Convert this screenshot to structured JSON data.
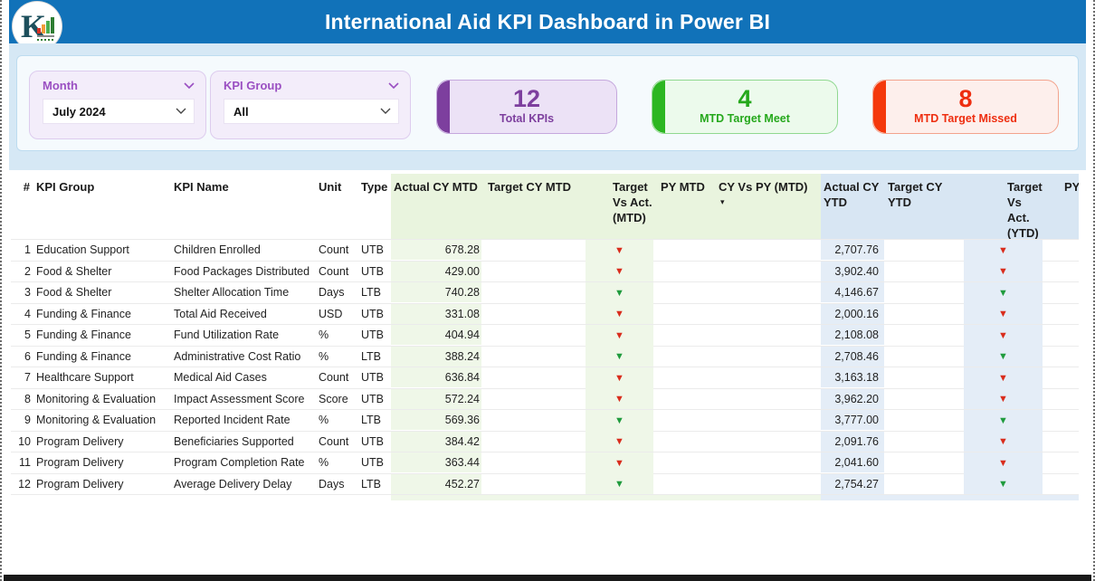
{
  "header": {
    "title": "International Aid KPI Dashboard in Power BI"
  },
  "logo": {
    "letter": "K"
  },
  "filters": {
    "month": {
      "label": "Month",
      "selected": "July 2024"
    },
    "kpi_group": {
      "label": "KPI Group",
      "selected": "All"
    }
  },
  "summary_cards": {
    "total": {
      "value": "12",
      "label": "Total KPIs",
      "color": "#7d3f9e"
    },
    "meet": {
      "value": "4",
      "label": "MTD Target Meet",
      "color": "#25a81c"
    },
    "missed": {
      "value": "8",
      "label": "MTD Target Missed",
      "color": "#ee2e10"
    }
  },
  "table": {
    "headers": {
      "num": "#",
      "group": "KPI Group",
      "name": "KPI Name",
      "unit": "Unit",
      "type": "Type",
      "actual_mtd": "Actual CY MTD",
      "target_mtd": "Target CY MTD",
      "vs_act_mtd": "Target Vs Act. (MTD)",
      "py_mtd": "PY MTD",
      "cy_vs_py_mtd": "CY Vs PY (MTD)",
      "actual_ytd": "Actual CY YTD",
      "target_ytd": "Target CY YTD",
      "vs_act_ytd": "Target Vs Act. (YTD)",
      "py_ytd": "PY"
    },
    "sorted_by": "CY Vs PY (MTD)",
    "rows": [
      {
        "num": "1",
        "group": "Education Support",
        "name": "Children Enrolled",
        "unit": "Count",
        "type": "UTB",
        "actual_mtd": "678.28",
        "mtd_status": "missed",
        "actual_ytd": "2,707.76",
        "ytd_status": "missed"
      },
      {
        "num": "2",
        "group": "Food & Shelter",
        "name": "Food Packages Distributed",
        "unit": "Count",
        "type": "UTB",
        "actual_mtd": "429.00",
        "mtd_status": "missed",
        "actual_ytd": "3,902.40",
        "ytd_status": "missed"
      },
      {
        "num": "3",
        "group": "Food & Shelter",
        "name": "Shelter Allocation Time",
        "unit": "Days",
        "type": "LTB",
        "actual_mtd": "740.28",
        "mtd_status": "met",
        "actual_ytd": "4,146.67",
        "ytd_status": "met"
      },
      {
        "num": "4",
        "group": "Funding & Finance",
        "name": "Total Aid Received",
        "unit": "USD",
        "type": "UTB",
        "actual_mtd": "331.08",
        "mtd_status": "missed",
        "actual_ytd": "2,000.16",
        "ytd_status": "missed"
      },
      {
        "num": "5",
        "group": "Funding & Finance",
        "name": "Fund Utilization Rate",
        "unit": "%",
        "type": "UTB",
        "actual_mtd": "404.94",
        "mtd_status": "missed",
        "actual_ytd": "2,108.08",
        "ytd_status": "missed"
      },
      {
        "num": "6",
        "group": "Funding & Finance",
        "name": "Administrative Cost Ratio",
        "unit": "%",
        "type": "LTB",
        "actual_mtd": "388.24",
        "mtd_status": "met",
        "actual_ytd": "2,708.46",
        "ytd_status": "met"
      },
      {
        "num": "7",
        "group": "Healthcare Support",
        "name": "Medical Aid Cases",
        "unit": "Count",
        "type": "UTB",
        "actual_mtd": "636.84",
        "mtd_status": "missed",
        "actual_ytd": "3,163.18",
        "ytd_status": "missed"
      },
      {
        "num": "8",
        "group": "Monitoring & Evaluation",
        "name": "Impact Assessment Score",
        "unit": "Score",
        "type": "UTB",
        "actual_mtd": "572.24",
        "mtd_status": "missed",
        "actual_ytd": "3,962.20",
        "ytd_status": "missed"
      },
      {
        "num": "9",
        "group": "Monitoring & Evaluation",
        "name": "Reported Incident Rate",
        "unit": "%",
        "type": "LTB",
        "actual_mtd": "569.36",
        "mtd_status": "met",
        "actual_ytd": "3,777.00",
        "ytd_status": "met"
      },
      {
        "num": "10",
        "group": "Program Delivery",
        "name": "Beneficiaries Supported",
        "unit": "Count",
        "type": "UTB",
        "actual_mtd": "384.42",
        "mtd_status": "missed",
        "actual_ytd": "2,091.76",
        "ytd_status": "missed"
      },
      {
        "num": "11",
        "group": "Program Delivery",
        "name": "Program Completion Rate",
        "unit": "%",
        "type": "UTB",
        "actual_mtd": "363.44",
        "mtd_status": "missed",
        "actual_ytd": "2,041.60",
        "ytd_status": "missed"
      },
      {
        "num": "12",
        "group": "Program Delivery",
        "name": "Average Delivery Delay",
        "unit": "Days",
        "type": "LTB",
        "actual_mtd": "452.27",
        "mtd_status": "met",
        "actual_ytd": "2,754.27",
        "ytd_status": "met"
      }
    ]
  },
  "icons": {
    "down_arrow": "▼",
    "sort_indicator": "▾"
  }
}
